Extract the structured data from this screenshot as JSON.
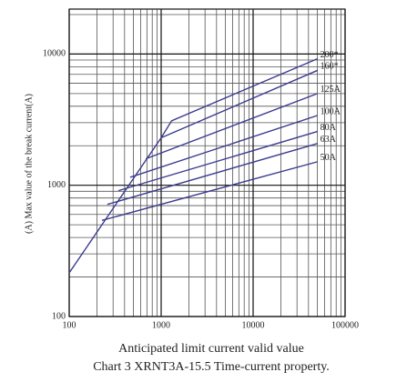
{
  "chart_data": {
    "type": "line",
    "y_label": "(A) Max value of the break current(A)",
    "x_label": "Anticipated limit current valid value",
    "caption": "Chart 3 XRNT3A-15.5 Time-current property.",
    "log_x": true,
    "log_y": true,
    "grid": true,
    "minor_grid": true,
    "xlim": [
      100,
      100000
    ],
    "ylim": [
      100,
      22000
    ],
    "xticks": [
      100,
      1000,
      10000,
      100000
    ],
    "yticks": [
      100,
      1000,
      10000
    ],
    "series": [
      {
        "name": "200*",
        "color": "#3b3b8f",
        "x": [
          100,
          1000,
          1300,
          50000
        ],
        "values": [
          215,
          2300,
          3100,
          9200
        ]
      },
      {
        "name": "160*",
        "color": "#3b3b8f",
        "x": [
          1000,
          50000
        ],
        "values": [
          2300,
          7500
        ]
      },
      {
        "name": "125A",
        "color": "#3b3b8f",
        "x": [
          680,
          50000
        ],
        "values": [
          1590,
          5000
        ]
      },
      {
        "name": "100A",
        "color": "#3b3b8f",
        "x": [
          460,
          50000
        ],
        "values": [
          1150,
          3400
        ]
      },
      {
        "name": "80A",
        "color": "#3b3b8f",
        "x": [
          343,
          50000
        ],
        "values": [
          910,
          2570
        ]
      },
      {
        "name": "63A",
        "color": "#3b3b8f",
        "x": [
          260,
          50000
        ],
        "values": [
          715,
          2080
        ]
      },
      {
        "name": "50A",
        "color": "#3b3b8f",
        "x": [
          227,
          50000
        ],
        "values": [
          540,
          1510
        ]
      }
    ]
  }
}
